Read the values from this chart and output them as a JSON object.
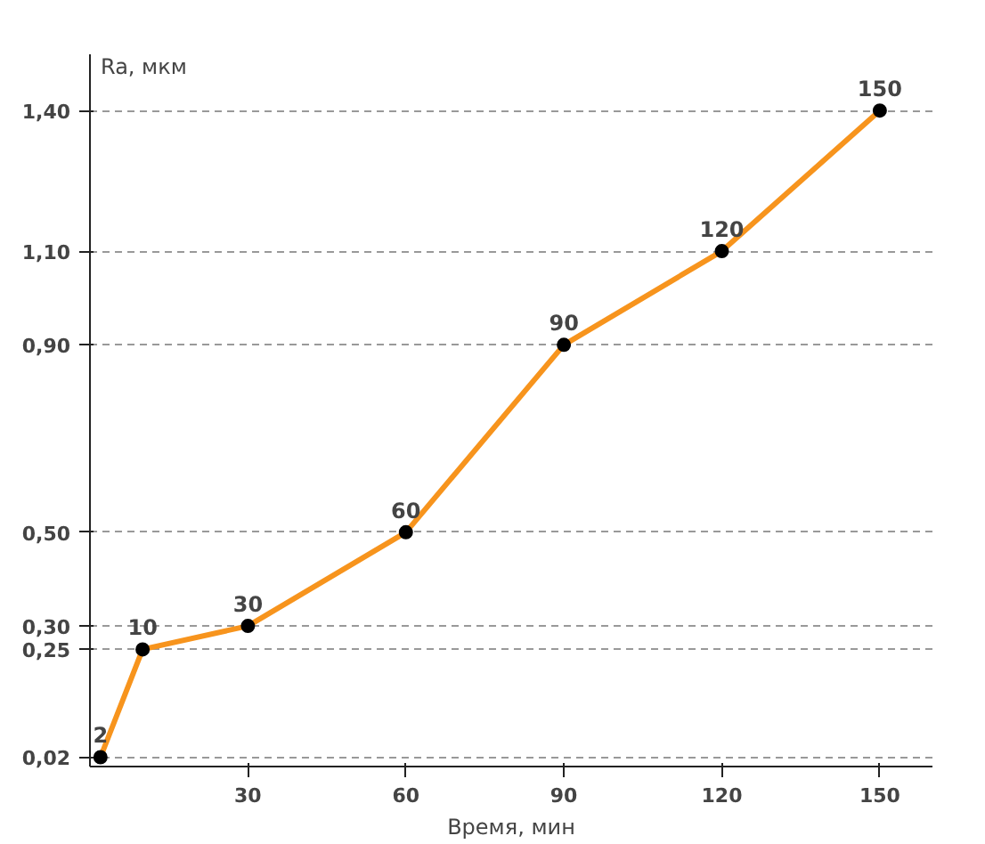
{
  "chart_data": {
    "type": "line",
    "xlabel": "Время, мин",
    "ylabel": "Ra, мкм",
    "x": [
      2,
      10,
      30,
      60,
      90,
      120,
      150
    ],
    "series": [
      {
        "color": "#f7941d",
        "values": [
          0.02,
          0.25,
          0.3,
          0.5,
          0.9,
          1.1,
          1.4
        ]
      }
    ],
    "marker": "circle",
    "grid": "y",
    "xlim": [
      0,
      160
    ],
    "ylim": [
      0,
      1.52
    ],
    "xticks": [
      30,
      60,
      90,
      120,
      150
    ],
    "yticks": [
      {
        "value": 0.02,
        "label": "0,02"
      },
      {
        "value": 0.25,
        "label": "0,25"
      },
      {
        "value": 0.3,
        "label": "0,30"
      },
      {
        "value": 0.5,
        "label": "0,50"
      },
      {
        "value": 0.9,
        "label": "0,90"
      },
      {
        "value": 1.1,
        "label": "1,10"
      },
      {
        "value": 1.4,
        "label": "1,40"
      }
    ],
    "annotations": [
      {
        "text": "2",
        "x": 2,
        "y": 0.02
      },
      {
        "text": "10",
        "x": 10,
        "y": 0.25
      },
      {
        "text": "30",
        "x": 30,
        "y": 0.3
      },
      {
        "text": "60",
        "x": 60,
        "y": 0.5
      },
      {
        "text": "90",
        "x": 90,
        "y": 0.9
      },
      {
        "text": "120",
        "x": 120,
        "y": 1.1
      },
      {
        "text": "150",
        "x": 150,
        "y": 1.4
      }
    ]
  }
}
